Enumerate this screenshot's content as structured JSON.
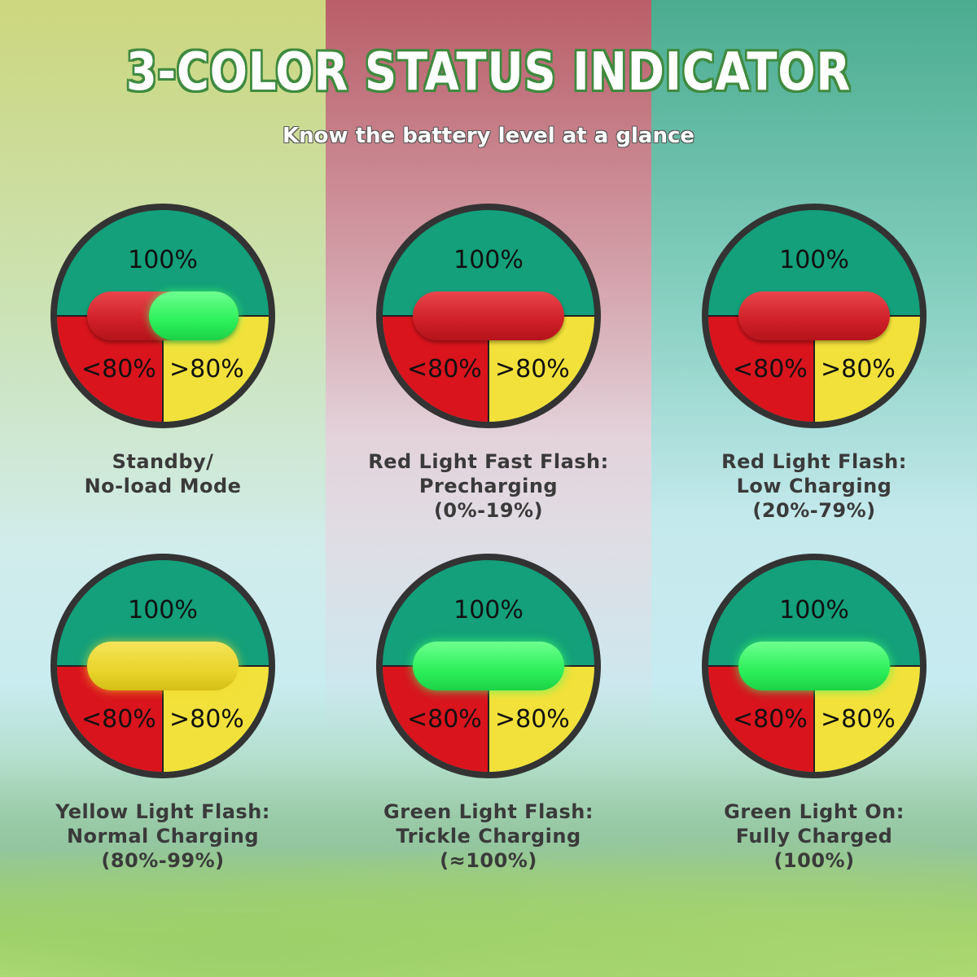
{
  "title": "3-COLOR STATUS INDICATOR",
  "subtitle": "Know the battery level at a glance",
  "colors": {
    "green_zone": "#13a07a",
    "red_zone": "#d9141d",
    "yellow_zone": "#f2e13a",
    "ring": "#333333",
    "title_outline": "#3f8a3f"
  },
  "zones": {
    "top": "100%",
    "left": "<80%",
    "right": ">80%"
  },
  "states": [
    {
      "indicator": "red-green",
      "lines": [
        "Standby/",
        "No-load Mode",
        ""
      ]
    },
    {
      "indicator": "red",
      "lines": [
        "Red Light Fast Flash:",
        "Precharging",
        "(0%-19%)"
      ]
    },
    {
      "indicator": "red",
      "lines": [
        "Red Light Flash:",
        "Low Charging",
        "(20%-79%)"
      ]
    },
    {
      "indicator": "yellow",
      "lines": [
        "Yellow Light Flash:",
        "Normal Charging",
        "(80%-99%)"
      ]
    },
    {
      "indicator": "green",
      "lines": [
        "Green Light Flash:",
        "Trickle Charging",
        "(≈100%)"
      ]
    },
    {
      "indicator": "green",
      "lines": [
        "Green Light On:",
        "Fully Charged",
        "(100%)"
      ]
    }
  ]
}
